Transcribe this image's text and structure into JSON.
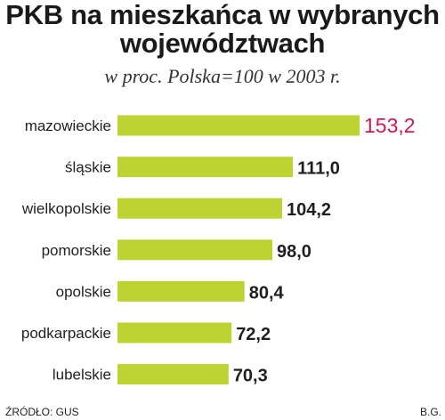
{
  "title": "PKB na mieszkańca w wybranych województwach",
  "title_line1": "PKB na mieszkańca w wybranych",
  "title_line2": "województwach",
  "subtitle": "w proc. Polska=100 w 2003 r.",
  "source": "ŹRÓDŁO: GUS",
  "author": "B.G.",
  "colors": {
    "bar": "#bdd332",
    "highlight": "#d2194f",
    "value_text": "#1f1f1f",
    "label_text": "#1f1f1f"
  },
  "chart_data": {
    "type": "bar",
    "orientation": "horizontal",
    "title": "PKB na mieszkańca w wybranych województwach",
    "subtitle": "w proc. Polska=100 w 2003 r.",
    "categories": [
      "mazowieckie",
      "śląskie",
      "wielkopolskie",
      "pomorskie",
      "opolskie",
      "podkarpackie",
      "lubelskie"
    ],
    "values": [
      153.2,
      111.0,
      104.2,
      98.0,
      80.4,
      72.2,
      70.3
    ],
    "value_labels": [
      "153,2",
      "111,0",
      "104,2",
      "98,0",
      "80,4",
      "72,2",
      "70,3"
    ],
    "highlighted_category": "mazowieckie",
    "xlim": [
      0,
      153.2
    ],
    "grid": false,
    "legend": "none"
  }
}
